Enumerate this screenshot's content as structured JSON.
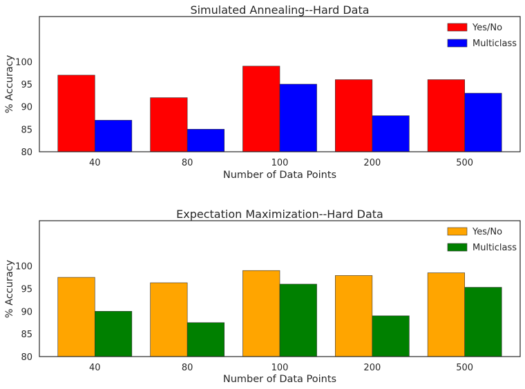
{
  "chart_data": [
    {
      "type": "bar",
      "title": "Simulated Annealing--Hard Data",
      "xlabel": "Number of Data Points",
      "ylabel": "% Accuracy",
      "categories": [
        "40",
        "80",
        "100",
        "200",
        "500"
      ],
      "ylim": [
        80,
        110
      ],
      "yticks": [
        80,
        85,
        90,
        95,
        100
      ],
      "grid": false,
      "legend_position": "top-right",
      "series": [
        {
          "name": "Yes/No",
          "color": "#ff0000",
          "values": [
            97,
            92,
            99,
            96,
            96
          ]
        },
        {
          "name": "Multiclass",
          "color": "#0000ff",
          "values": [
            87,
            85,
            95,
            88,
            93
          ]
        }
      ]
    },
    {
      "type": "bar",
      "title": "Expectation Maximization--Hard Data",
      "xlabel": "Number of Data Points",
      "ylabel": "% Accuracy",
      "categories": [
        "40",
        "80",
        "100",
        "200",
        "500"
      ],
      "ylim": [
        80,
        110
      ],
      "yticks": [
        80,
        85,
        90,
        95,
        100
      ],
      "grid": false,
      "legend_position": "top-right",
      "series": [
        {
          "name": "Yes/No",
          "color": "#ffa500",
          "values": [
            97.5,
            96.3,
            99,
            97.9,
            98.5
          ]
        },
        {
          "name": "Multiclass",
          "color": "#008000",
          "values": [
            90,
            87.5,
            96,
            89,
            95.3
          ]
        }
      ]
    }
  ]
}
